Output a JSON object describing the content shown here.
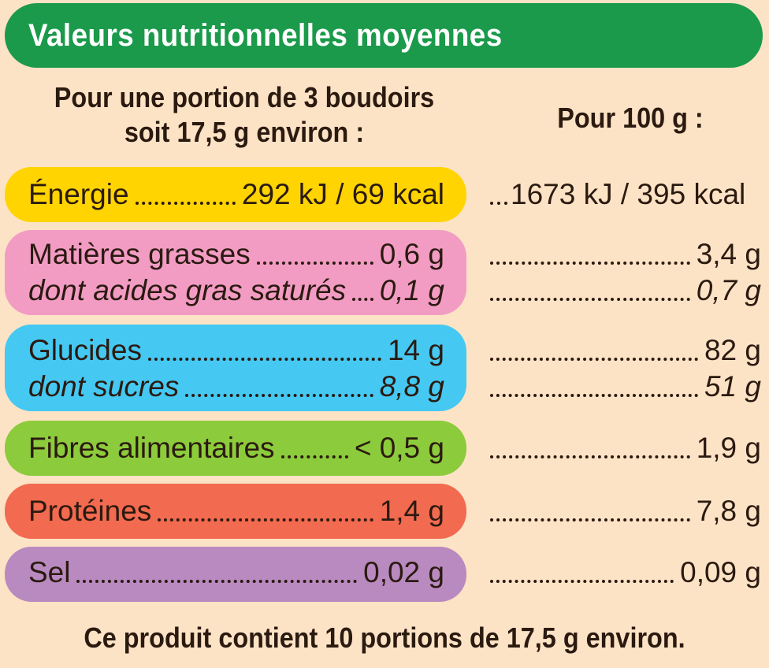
{
  "title": "Valeurs nutritionnelles moyennes",
  "header": {
    "portion_line1": "Pour une portion de 3 boudoirs",
    "portion_line2": "soit 17,5 g environ  :",
    "per100": "Pour 100 g :"
  },
  "rows": {
    "energy": {
      "label": "Énergie",
      "portion": "292 kJ / 69 kcal",
      "per100": "1673 kJ / 395 kcal",
      "color": "#ffd400"
    },
    "fat": {
      "label": "Matières grasses",
      "portion": "0,6 g",
      "per100": "3,4 g",
      "color": "#f29cc4"
    },
    "saturates": {
      "label": "dont acides gras saturés",
      "portion": "0,1 g",
      "per100": "0,7 g"
    },
    "carbs": {
      "label": "Glucides",
      "portion": "14 g",
      "per100": "82 g",
      "color": "#45c8f2"
    },
    "sugars": {
      "label": "dont sucres",
      "portion": "8,8 g",
      "per100": "51 g"
    },
    "fibre": {
      "label": "Fibres alimentaires",
      "portion": "< 0,5 g",
      "per100": "1,9 g",
      "color": "#8ccb3c"
    },
    "protein": {
      "label": "Protéines",
      "portion": "1,4 g",
      "per100": "7,8 g",
      "color": "#f26a4f"
    },
    "salt": {
      "label": "Sel",
      "portion": "0,02 g",
      "per100": "0,09 g",
      "color": "#b98ac0"
    }
  },
  "footer": "Ce produit contient 10 portions de 17,5 g environ.",
  "colors": {
    "background": "#fde3c6",
    "title_bar": "#1a9a4a",
    "text": "#2b1a10"
  }
}
